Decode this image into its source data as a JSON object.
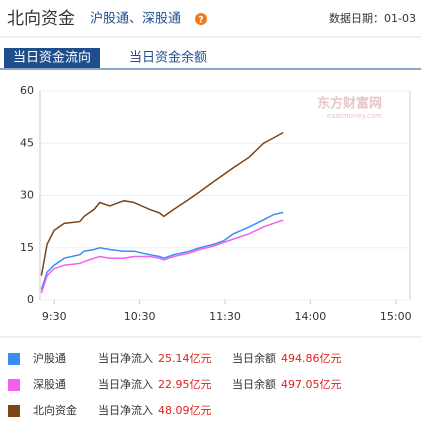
{
  "header": {
    "title": "北向资金",
    "subtitle": "沪股通、深股通",
    "date": "数据日期：01-03"
  },
  "tabs": [
    "当日资金流向",
    "当日资金余额"
  ],
  "chart_data": {
    "type": "line",
    "watermark": "东方财富网",
    "watermark_sub": "eastmoney.com",
    "x": [
      -9,
      -5,
      0,
      7,
      18,
      21,
      28,
      32,
      39,
      49,
      56,
      67,
      74,
      77,
      84,
      95,
      102,
      112,
      119,
      126,
      137,
      147,
      154,
      161
    ],
    "xlim": [
      -10,
      250
    ],
    "xticks": [
      {
        "value": 0,
        "label": "9:30"
      },
      {
        "value": 60,
        "label": "10:30"
      },
      {
        "value": 120,
        "label": "11:30"
      },
      {
        "value": 180,
        "label": "14:00"
      },
      {
        "value": 240,
        "label": "15:00"
      }
    ],
    "ylim": [
      0,
      60
    ],
    "yticks": [
      0,
      15,
      30,
      45,
      60
    ],
    "grid": true,
    "inflow_label": "当日净流入",
    "balance_label": "当日余额",
    "series": [
      {
        "name": "沪股通",
        "color": "#3a8ef0",
        "values": [
          3,
          8,
          10,
          12,
          13,
          14,
          14.5,
          15,
          14.5,
          14,
          14,
          13,
          12.5,
          12,
          13,
          14,
          15,
          16,
          17,
          19,
          21,
          23,
          24.5,
          25.14
        ],
        "inflow": {
          "value": 25.14,
          "label": "25.14亿元"
        },
        "balance": {
          "value": 494.86,
          "label": "494.86亿元"
        }
      },
      {
        "name": "深股通",
        "color": "#f25ff2",
        "values": [
          2,
          7,
          9,
          10,
          10.5,
          11,
          12,
          12.5,
          12,
          12,
          12.5,
          12.5,
          12,
          11.5,
          12.5,
          13.5,
          14.5,
          15.5,
          16.5,
          17.5,
          19,
          21,
          22,
          22.95
        ],
        "inflow": {
          "value": 22.95,
          "label": "22.95亿元"
        },
        "balance": {
          "value": 497.05,
          "label": "497.05亿元"
        }
      },
      {
        "name": "北向资金",
        "color": "#7b4515",
        "values": [
          7,
          16,
          20,
          22,
          22.5,
          24,
          26,
          28,
          27,
          28.5,
          28,
          26,
          25,
          24,
          26,
          29,
          31,
          34,
          36,
          38,
          41,
          45,
          46.5,
          48.09
        ],
        "inflow": {
          "value": 48.09,
          "label": "48.09亿元"
        }
      }
    ]
  }
}
